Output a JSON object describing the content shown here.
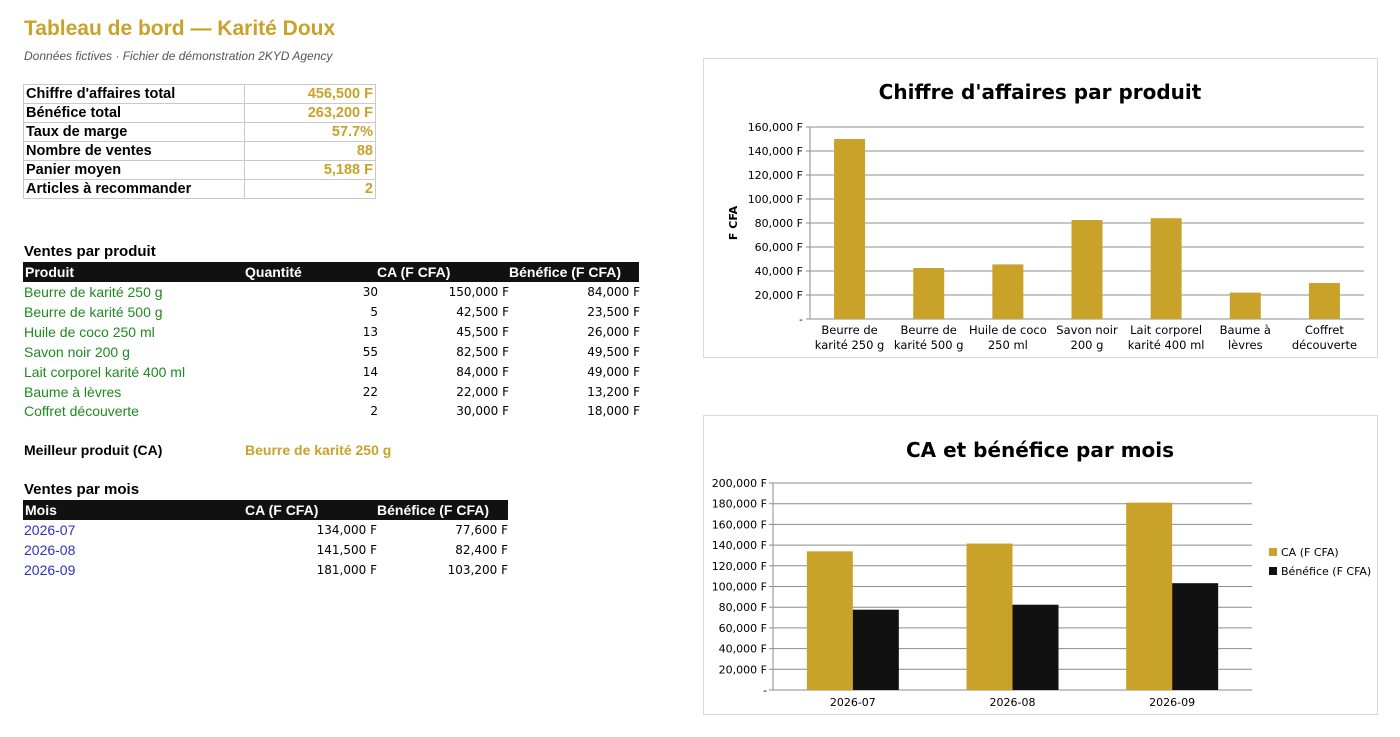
{
  "header": {
    "title": "Tableau de bord — Karité Doux",
    "subtitle": "Données fictives · Fichier de démonstration 2KYD Agency"
  },
  "kpis": [
    {
      "label": "Chiffre d'affaires total",
      "value": "456,500 F"
    },
    {
      "label": "Bénéfice total",
      "value": "263,200 F"
    },
    {
      "label": "Taux de marge",
      "value": "57.7%"
    },
    {
      "label": "Nombre de ventes",
      "value": "88"
    },
    {
      "label": "Panier moyen",
      "value": "5,188 F"
    },
    {
      "label": "Articles à recommander",
      "value": "2"
    }
  ],
  "products": {
    "section_title": "Ventes par produit",
    "headers": [
      "Produit",
      "Quantité",
      "CA (F CFA)",
      "Bénéfice (F CFA)"
    ],
    "rows": [
      {
        "name": "Beurre de karité 250 g",
        "qty": "30",
        "ca": "150,000 F",
        "benefice": "84,000 F"
      },
      {
        "name": "Beurre de karité 500 g",
        "qty": "5",
        "ca": "42,500 F",
        "benefice": "23,500 F"
      },
      {
        "name": "Huile de coco 250 ml",
        "qty": "13",
        "ca": "45,500 F",
        "benefice": "26,000 F"
      },
      {
        "name": "Savon noir 200 g",
        "qty": "55",
        "ca": "82,500 F",
        "benefice": "49,500 F"
      },
      {
        "name": "Lait corporel karité 400 ml",
        "qty": "14",
        "ca": "84,000 F",
        "benefice": "49,000 F"
      },
      {
        "name": "Baume à lèvres",
        "qty": "22",
        "ca": "22,000 F",
        "benefice": "13,200 F"
      },
      {
        "name": "Coffret découverte",
        "qty": "2",
        "ca": "30,000 F",
        "benefice": "18,000 F"
      }
    ]
  },
  "best_product": {
    "label": "Meilleur produit (CA)",
    "value": "Beurre de karité 250 g"
  },
  "months": {
    "section_title": "Ventes par mois",
    "headers": [
      "Mois",
      "CA (F CFA)",
      "Bénéfice (F CFA)"
    ],
    "rows": [
      {
        "month": "2026-07",
        "ca": "134,000 F",
        "benefice": "77,600 F"
      },
      {
        "month": "2026-08",
        "ca": "141,500 F",
        "benefice": "82,400 F"
      },
      {
        "month": "2026-09",
        "ca": "181,000 F",
        "benefice": "103,200 F"
      }
    ]
  },
  "colors": {
    "gold": "#C9A22A",
    "black": "#111111",
    "green": "#1E8A1E",
    "blue": "#2F2FCC"
  },
  "chart_data": [
    {
      "type": "bar",
      "title": "Chiffre d'affaires par produit",
      "ylabel": "F CFA",
      "xlabel": "",
      "categories": [
        "Beurre de karité 250 g",
        "Beurre de karité 500 g",
        "Huile de coco 250 ml",
        "Savon noir 200 g",
        "Lait corporel karité 400 ml",
        "Baume à lèvres",
        "Coffret découverte"
      ],
      "category_lines": [
        [
          "Beurre de",
          "karité 250 g"
        ],
        [
          "Beurre de",
          "karité 500 g"
        ],
        [
          "Huile de coco",
          "250 ml"
        ],
        [
          "Savon noir",
          "200 g"
        ],
        [
          "Lait corporel",
          "karité 400 ml"
        ],
        [
          "Baume à",
          "lèvres"
        ],
        [
          "Coffret",
          "découverte"
        ]
      ],
      "values": [
        150000,
        42500,
        45500,
        82500,
        84000,
        22000,
        30000
      ],
      "ylim": [
        0,
        160000
      ],
      "yticks": [
        0,
        20000,
        40000,
        60000,
        80000,
        100000,
        120000,
        140000,
        160000
      ],
      "ytick_labels": [
        "-",
        "20,000 F",
        "40,000 F",
        "60,000 F",
        "80,000 F",
        "100,000 F",
        "120,000 F",
        "140,000 F",
        "160,000 F"
      ],
      "grid": true,
      "legend": "none",
      "color": "#C9A22A"
    },
    {
      "type": "bar",
      "title": "CA et bénéfice par mois",
      "xlabel": "",
      "ylabel": "",
      "categories": [
        "2026-07",
        "2026-08",
        "2026-09"
      ],
      "series": [
        {
          "name": "CA (F CFA)",
          "values": [
            134000,
            141500,
            181000
          ],
          "color": "#C9A22A"
        },
        {
          "name": "Bénéfice (F CFA)",
          "values": [
            77600,
            82400,
            103200
          ],
          "color": "#111111"
        }
      ],
      "ylim": [
        0,
        200000
      ],
      "yticks": [
        0,
        20000,
        40000,
        60000,
        80000,
        100000,
        120000,
        140000,
        160000,
        180000,
        200000
      ],
      "ytick_labels": [
        "-",
        "20,000 F",
        "40,000 F",
        "60,000 F",
        "80,000 F",
        "100,000 F",
        "120,000 F",
        "140,000 F",
        "160,000 F",
        "180,000 F",
        "200,000 F"
      ],
      "grid": true,
      "legend": "right"
    }
  ]
}
